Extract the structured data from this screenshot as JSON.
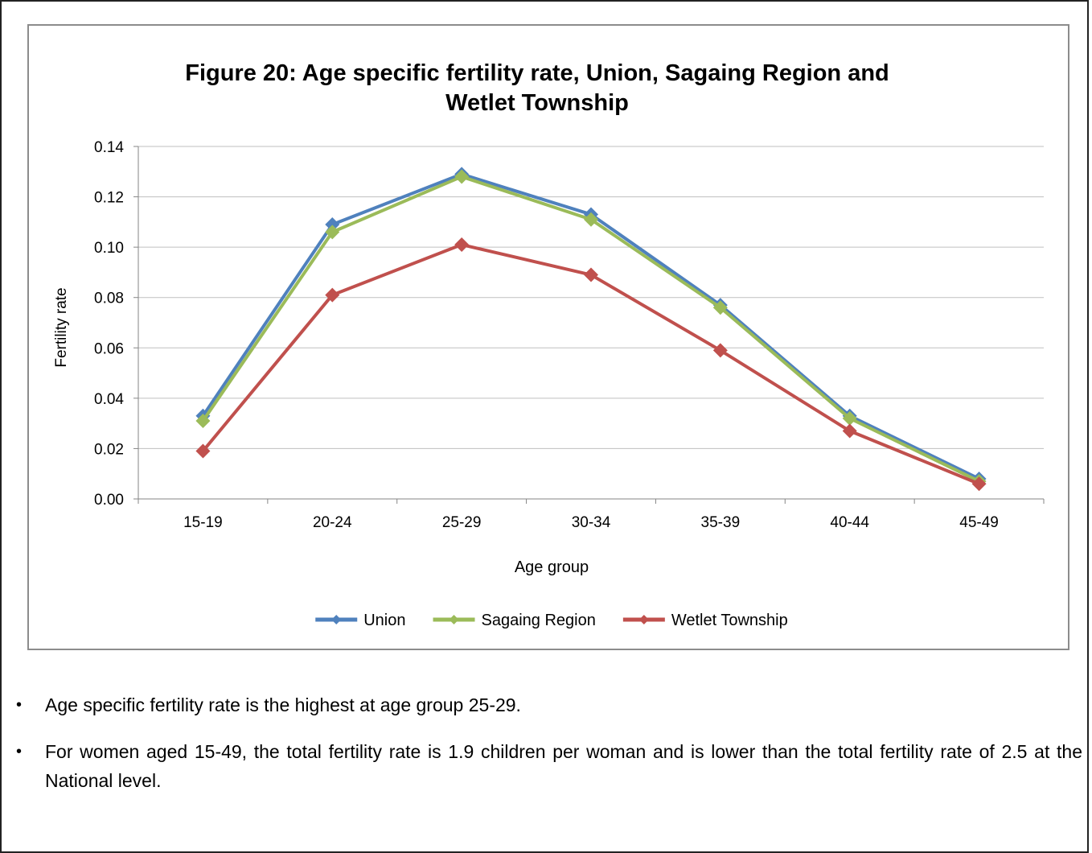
{
  "chart_data": {
    "type": "line",
    "title_lines": [
      "Figure 20: Age specific fertility rate, Union, Sagaing Region and",
      "Wetlet Township"
    ],
    "xlabel": "Age group",
    "ylabel": "Fertility rate",
    "categories": [
      "15-19",
      "20-24",
      "25-29",
      "30-34",
      "35-39",
      "40-44",
      "45-49"
    ],
    "ylim": [
      0,
      0.14
    ],
    "yticks": [
      "0.00",
      "0.02",
      "0.04",
      "0.06",
      "0.08",
      "0.10",
      "0.12",
      "0.14"
    ],
    "grid": true,
    "legend_position": "bottom",
    "series": [
      {
        "name": "Union",
        "color": "#4f81bd",
        "values": [
          0.033,
          0.109,
          0.129,
          0.113,
          0.077,
          0.033,
          0.008
        ]
      },
      {
        "name": "Sagaing Region",
        "color": "#9bbb59",
        "values": [
          0.031,
          0.106,
          0.128,
          0.111,
          0.076,
          0.032,
          0.007
        ]
      },
      {
        "name": "Wetlet Township",
        "color": "#c0504d",
        "values": [
          0.019,
          0.081,
          0.101,
          0.089,
          0.059,
          0.027,
          0.006
        ]
      }
    ]
  },
  "bullets": [
    "Age specific fertility rate is the highest at age group 25-29.",
    "For women aged 15-49, the total fertility rate is 1.9 children per woman and is lower than the total fertility rate of 2.5 at the National level."
  ],
  "bullet_symbol": "•"
}
